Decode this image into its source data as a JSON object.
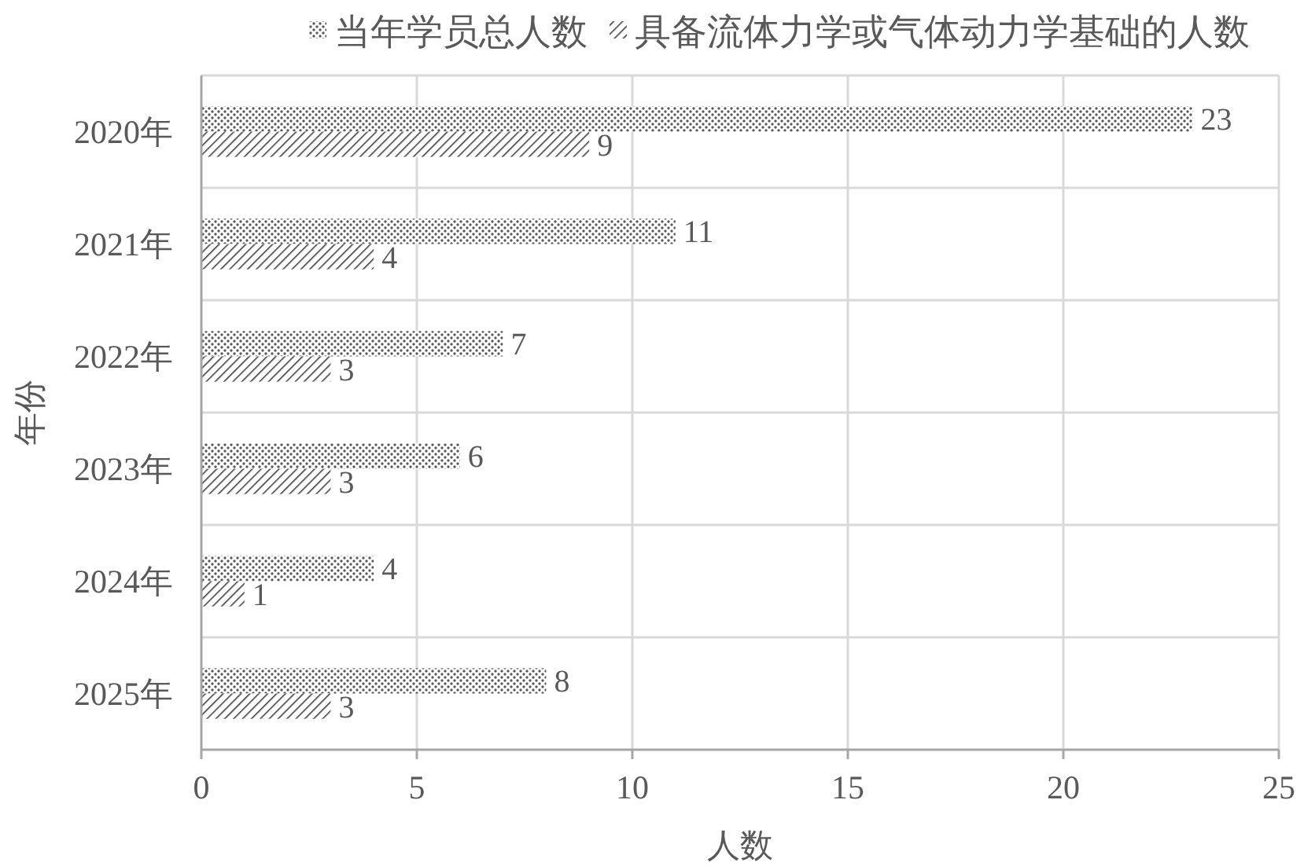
{
  "chart_data": {
    "type": "bar",
    "orientation": "horizontal",
    "categories": [
      "2020年",
      "2021年",
      "2022年",
      "2023年",
      "2024年",
      "2025年"
    ],
    "series": [
      {
        "name": "当年学员总人数",
        "color": "#595959",
        "values": [
          23,
          11,
          7,
          6,
          4,
          8
        ]
      },
      {
        "name": "具备流体力学或气体动力学基础的人数",
        "color": "#404040",
        "values": [
          9,
          4,
          3,
          3,
          1,
          3
        ]
      }
    ],
    "xlabel": "人数",
    "ylabel": "年份",
    "xlim": [
      0,
      25
    ],
    "xticks": [
      0,
      5,
      10,
      15,
      20,
      25
    ],
    "grid": true,
    "legend": "top",
    "data_labels": true
  }
}
